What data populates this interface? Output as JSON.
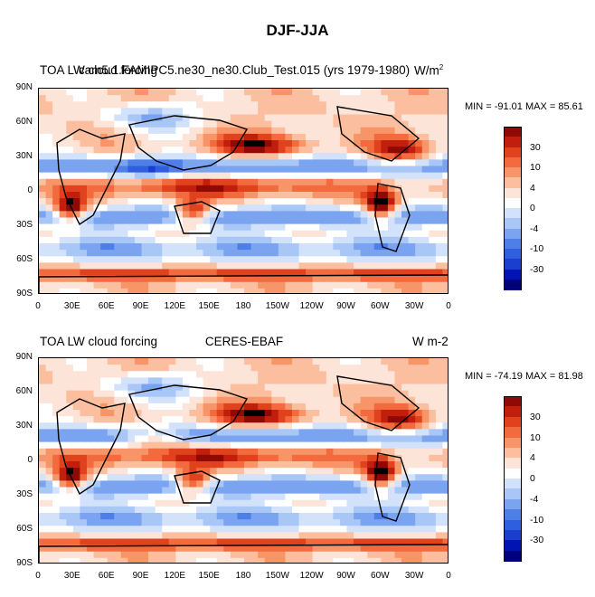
{
  "main_title": "DJF-JJA",
  "colors": {
    "levels": [
      "#00007f",
      "#0014b4",
      "#1c3ecf",
      "#2f5fdf",
      "#4e7fe8",
      "#7aa3f0",
      "#a8c6f6",
      "#d2e2fb",
      "#ffffff",
      "#fde4d8",
      "#fbbf9f",
      "#f79468",
      "#f26a3d",
      "#e0421e",
      "#c21e0e",
      "#8f0a05"
    ],
    "map_background": "#7aa3f0",
    "coast": "#000000"
  },
  "chart_data": [
    {
      "type": "heatmap",
      "panel": "top",
      "title_left": "TOA LW cloud forcing",
      "title_center": "cam5.1.FAMIPC5.ne30_ne30.Club_Test.015 (yrs 1979-1980)",
      "title_right": "W/m",
      "title_right_sup": "2",
      "min_label": "MIN = -91.01",
      "max_label": "MAX =  85.61",
      "min_value": -91.01,
      "max_value": 85.61,
      "y_ticks": [
        "90N",
        "60N",
        "30N",
        "0",
        "30S",
        "60S",
        "90S"
      ],
      "x_ticks": [
        "0",
        "30E",
        "60E",
        "90E",
        "120E",
        "150E",
        "180",
        "150W",
        "120W",
        "90W",
        "60W",
        "30W",
        "0"
      ],
      "colorbar_labels": [
        "30",
        "10",
        "4",
        "0",
        "-4",
        "-10",
        "-30"
      ],
      "colorbar_levels": [
        -45,
        -40,
        -35,
        -30,
        -25,
        -20,
        -15,
        -10,
        -5,
        0,
        5,
        10,
        15,
        20,
        25,
        30,
        35
      ],
      "xlim": [
        0,
        360
      ],
      "ylim": [
        -90,
        90
      ]
    },
    {
      "type": "heatmap",
      "panel": "bottom",
      "title_left": "TOA LW cloud forcing",
      "title_center": "CERES-EBAF",
      "title_right": "W m-2",
      "min_label": "MIN = -74.19",
      "max_label": "MAX =  81.98",
      "min_value": -74.19,
      "max_value": 81.98,
      "y_ticks": [
        "90N",
        "60N",
        "30N",
        "0",
        "30S",
        "60S",
        "90S"
      ],
      "x_ticks": [
        "0",
        "30E",
        "60E",
        "90E",
        "120E",
        "150E",
        "180",
        "150W",
        "120W",
        "90W",
        "60W",
        "30W",
        "0"
      ],
      "colorbar_labels": [
        "30",
        "10",
        "4",
        "0",
        "-4",
        "-10",
        "-30"
      ],
      "colorbar_levels": [
        -45,
        -40,
        -35,
        -30,
        -25,
        -20,
        -15,
        -10,
        -5,
        0,
        5,
        10,
        15,
        20,
        25,
        30,
        35
      ],
      "xlim": [
        0,
        360
      ],
      "ylim": [
        -90,
        90
      ]
    }
  ]
}
